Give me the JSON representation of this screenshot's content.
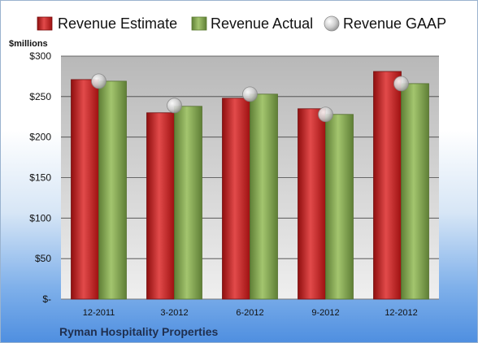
{
  "chart_data": {
    "type": "bar",
    "unit_label": "$millions",
    "footer": "Ryman Hospitality Properties",
    "categories": [
      "12-2011",
      "3-2012",
      "6-2012",
      "9-2012",
      "12-2012"
    ],
    "y_tick_labels": [
      "$-",
      "$50",
      "$100",
      "$150",
      "$200",
      "$250",
      "$300"
    ],
    "ylim": [
      0,
      300
    ],
    "grid": true,
    "legend": "top",
    "series": [
      {
        "name": "Revenue Estimate",
        "values": [
          271,
          230,
          248,
          235,
          281
        ]
      },
      {
        "name": "Revenue Actual",
        "values": [
          269,
          238,
          253,
          228,
          266
        ]
      },
      {
        "name": "Revenue GAAP",
        "values": [
          269,
          239,
          253,
          228,
          266
        ]
      }
    ],
    "colors": {
      "estimate": "#cc1f1f",
      "actual": "#7ea64a",
      "gaap": "#b9b9b9"
    }
  }
}
